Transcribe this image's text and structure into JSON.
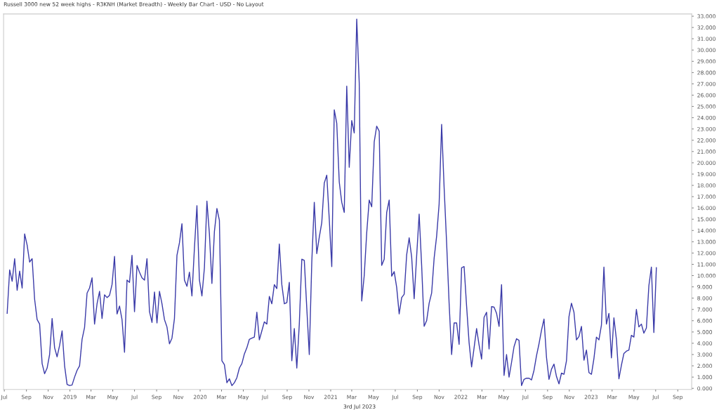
{
  "chart_data": {
    "type": "line",
    "title": "Russell 3000 new 52 week highs - R3KNH (Market Breadth) - Weekly Bar Chart - USD - No Layout",
    "annotations": [
      "3rd Jul 2023"
    ],
    "x": [
      "2018-07-09",
      "2018-07-16",
      "2018-07-23",
      "2018-07-30",
      "2018-08-06",
      "2018-08-13",
      "2018-08-20",
      "2018-08-27",
      "2018-09-03",
      "2018-09-10",
      "2018-09-17",
      "2018-09-24",
      "2018-10-01",
      "2018-10-08",
      "2018-10-15",
      "2018-10-22",
      "2018-10-29",
      "2018-11-05",
      "2018-11-12",
      "2018-11-19",
      "2018-11-26",
      "2018-12-03",
      "2018-12-10",
      "2018-12-17",
      "2018-12-24",
      "2018-12-31",
      "2019-01-07",
      "2019-01-14",
      "2019-01-21",
      "2019-01-28",
      "2019-02-04",
      "2019-02-11",
      "2019-02-18",
      "2019-02-25",
      "2019-03-04",
      "2019-03-11",
      "2019-03-18",
      "2019-03-25",
      "2019-04-01",
      "2019-04-08",
      "2019-04-15",
      "2019-04-22",
      "2019-04-29",
      "2019-05-06",
      "2019-05-13",
      "2019-05-20",
      "2019-05-27",
      "2019-06-03",
      "2019-06-10",
      "2019-06-17",
      "2019-06-24",
      "2019-07-01",
      "2019-07-08",
      "2019-07-15",
      "2019-07-22",
      "2019-07-29",
      "2019-08-05",
      "2019-08-12",
      "2019-08-19",
      "2019-08-26",
      "2019-09-02",
      "2019-09-09",
      "2019-09-16",
      "2019-09-23",
      "2019-09-30",
      "2019-10-07",
      "2019-10-14",
      "2019-10-21",
      "2019-10-28",
      "2019-11-04",
      "2019-11-11",
      "2019-11-18",
      "2019-11-25",
      "2019-12-02",
      "2019-12-09",
      "2019-12-16",
      "2019-12-23",
      "2019-12-30",
      "2020-01-06",
      "2020-01-13",
      "2020-01-20",
      "2020-01-27",
      "2020-02-03",
      "2020-02-10",
      "2020-02-17",
      "2020-02-24",
      "2020-03-02",
      "2020-03-09",
      "2020-03-16",
      "2020-03-23",
      "2020-03-30",
      "2020-04-06",
      "2020-04-13",
      "2020-04-20",
      "2020-04-27",
      "2020-05-04",
      "2020-05-11",
      "2020-05-18",
      "2020-05-25",
      "2020-06-01",
      "2020-06-08",
      "2020-06-15",
      "2020-06-22",
      "2020-06-29",
      "2020-07-06",
      "2020-07-13",
      "2020-07-20",
      "2020-07-27",
      "2020-08-03",
      "2020-08-10",
      "2020-08-17",
      "2020-08-24",
      "2020-08-31",
      "2020-09-07",
      "2020-09-14",
      "2020-09-21",
      "2020-09-28",
      "2020-10-05",
      "2020-10-12",
      "2020-10-19",
      "2020-10-26",
      "2020-11-02",
      "2020-11-09",
      "2020-11-16",
      "2020-11-23",
      "2020-11-30",
      "2020-12-07",
      "2020-12-14",
      "2020-12-21",
      "2020-12-28",
      "2021-01-04",
      "2021-01-11",
      "2021-01-18",
      "2021-01-25",
      "2021-02-01",
      "2021-02-08",
      "2021-02-15",
      "2021-02-22",
      "2021-03-01",
      "2021-03-08",
      "2021-03-15",
      "2021-03-22",
      "2021-03-29",
      "2021-04-05",
      "2021-04-12",
      "2021-04-19",
      "2021-04-26",
      "2021-05-03",
      "2021-05-10",
      "2021-05-17",
      "2021-05-24",
      "2021-05-31",
      "2021-06-07",
      "2021-06-14",
      "2021-06-21",
      "2021-06-28",
      "2021-07-05",
      "2021-07-12",
      "2021-07-19",
      "2021-07-26",
      "2021-08-02",
      "2021-08-09",
      "2021-08-16",
      "2021-08-23",
      "2021-08-30",
      "2021-09-06",
      "2021-09-13",
      "2021-09-20",
      "2021-09-27",
      "2021-10-04",
      "2021-10-11",
      "2021-10-18",
      "2021-10-25",
      "2021-11-01",
      "2021-11-08",
      "2021-11-15",
      "2021-11-22",
      "2021-11-29",
      "2021-12-06",
      "2021-12-13",
      "2021-12-20",
      "2021-12-27",
      "2022-01-03",
      "2022-01-10",
      "2022-01-17",
      "2022-01-24",
      "2022-01-31",
      "2022-02-07",
      "2022-02-14",
      "2022-02-21",
      "2022-02-28",
      "2022-03-07",
      "2022-03-14",
      "2022-03-21",
      "2022-03-28",
      "2022-04-04",
      "2022-04-11",
      "2022-04-18",
      "2022-04-25",
      "2022-05-02",
      "2022-05-09",
      "2022-05-16",
      "2022-05-23",
      "2022-05-30",
      "2022-06-06",
      "2022-06-13",
      "2022-06-20",
      "2022-06-27",
      "2022-07-04",
      "2022-07-11",
      "2022-07-18",
      "2022-07-25",
      "2022-08-01",
      "2022-08-08",
      "2022-08-15",
      "2022-08-22",
      "2022-08-29",
      "2022-09-05",
      "2022-09-12",
      "2022-09-19",
      "2022-09-26",
      "2022-10-03",
      "2022-10-10",
      "2022-10-17",
      "2022-10-24",
      "2022-10-31",
      "2022-11-07",
      "2022-11-14",
      "2022-11-21",
      "2022-11-28",
      "2022-12-05",
      "2022-12-12",
      "2022-12-19",
      "2022-12-26",
      "2023-01-02",
      "2023-01-09",
      "2023-01-16",
      "2023-01-23",
      "2023-01-30",
      "2023-02-06",
      "2023-02-13",
      "2023-02-20",
      "2023-02-27",
      "2023-03-06",
      "2023-03-13",
      "2023-03-20",
      "2023-03-27",
      "2023-04-03",
      "2023-04-10",
      "2023-04-17",
      "2023-04-24",
      "2023-05-01",
      "2023-05-08",
      "2023-05-15",
      "2023-05-22",
      "2023-05-29",
      "2023-06-05",
      "2023-06-12",
      "2023-06-19",
      "2023-06-26",
      "2023-07-03"
    ],
    "series": [
      {
        "color": "#3a3aa8",
        "values": [
          6.65,
          10.5,
          9.5,
          11.5,
          8.7,
          10.4,
          8.9,
          13.7,
          12.7,
          11.2,
          11.5,
          7.9,
          6.1,
          5.7,
          2.2,
          1.3,
          1.8,
          3.0,
          6.2,
          3.6,
          2.8,
          3.8,
          5.1,
          2.0,
          0.35,
          0.25,
          0.3,
          1.0,
          1.6,
          2.0,
          4.35,
          5.4,
          8.45,
          8.9,
          9.8,
          5.7,
          7.5,
          8.6,
          6.2,
          8.3,
          8.05,
          8.25,
          9.2,
          11.7,
          6.6,
          7.3,
          6.1,
          3.2,
          9.6,
          9.4,
          11.8,
          6.8,
          10.9,
          10.3,
          9.8,
          9.6,
          11.5,
          6.8,
          5.85,
          8.55,
          5.8,
          8.6,
          7.5,
          6.1,
          5.45,
          3.95,
          4.45,
          6.2,
          11.8,
          12.9,
          14.6,
          9.6,
          9.05,
          10.3,
          8.2,
          12.45,
          16.2,
          9.6,
          8.2,
          10.7,
          16.6,
          13.7,
          9.3,
          13.9,
          15.95,
          14.9,
          2.45,
          2.1,
          0.5,
          0.85,
          0.25,
          0.5,
          0.95,
          1.8,
          2.2,
          3.05,
          3.6,
          4.35,
          4.45,
          4.55,
          6.75,
          4.3,
          5.1,
          5.9,
          5.7,
          8.15,
          7.5,
          9.2,
          8.85,
          12.8,
          9.2,
          7.5,
          7.6,
          9.4,
          2.45,
          5.3,
          1.8,
          5.7,
          11.45,
          11.35,
          7.1,
          3.0,
          11.2,
          16.5,
          11.95,
          13.4,
          14.7,
          18.2,
          18.9,
          15.0,
          10.8,
          24.7,
          23.5,
          18.3,
          16.5,
          15.6,
          26.8,
          19.6,
          23.75,
          22.65,
          32.75,
          27.1,
          7.75,
          10.0,
          13.8,
          16.7,
          16.1,
          21.85,
          23.25,
          22.8,
          10.9,
          11.45,
          15.6,
          16.7,
          9.95,
          10.35,
          8.95,
          6.6,
          8.05,
          8.35,
          11.85,
          13.35,
          11.65,
          7.95,
          11.75,
          15.45,
          10.9,
          5.5,
          6.0,
          7.55,
          8.45,
          11.55,
          13.5,
          16.35,
          23.4,
          17.8,
          12.9,
          7.55,
          3.0,
          5.8,
          5.8,
          3.9,
          10.7,
          10.8,
          7.3,
          4.05,
          1.9,
          3.6,
          5.3,
          3.85,
          2.6,
          6.3,
          6.75,
          3.5,
          7.25,
          7.2,
          6.65,
          5.5,
          9.2,
          1.15,
          3.0,
          1.0,
          2.3,
          3.7,
          4.4,
          4.25,
          0.25,
          0.8,
          0.9,
          0.9,
          0.75,
          1.6,
          2.9,
          3.95,
          5.15,
          6.15,
          2.75,
          0.8,
          1.7,
          2.15,
          1.05,
          0.4,
          1.35,
          1.25,
          2.45,
          6.35,
          7.55,
          6.75,
          4.3,
          4.6,
          5.5,
          2.5,
          3.4,
          1.4,
          1.25,
          2.65,
          4.55,
          4.3,
          5.6,
          10.75,
          5.7,
          6.65,
          2.7,
          6.25,
          4.35,
          0.85,
          2.05,
          3.1,
          3.3,
          3.4,
          4.7,
          4.55,
          7.0,
          5.45,
          5.7,
          4.9,
          5.35,
          9.1,
          10.75,
          4.95,
          10.7
        ]
      }
    ],
    "xlim": [
      "2018-06-29",
      "2023-10-10"
    ],
    "xticks": [
      {
        "value": "2018-07-01",
        "label": "Jul"
      },
      {
        "value": "2018-09-01",
        "label": "Sep"
      },
      {
        "value": "2018-11-01",
        "label": "Nov"
      },
      {
        "value": "2019-01-01",
        "label": "2019"
      },
      {
        "value": "2019-03-01",
        "label": "Mar"
      },
      {
        "value": "2019-05-01",
        "label": "May"
      },
      {
        "value": "2019-07-01",
        "label": "Jul"
      },
      {
        "value": "2019-09-01",
        "label": "Sep"
      },
      {
        "value": "2019-11-01",
        "label": "Nov"
      },
      {
        "value": "2020-01-01",
        "label": "2020"
      },
      {
        "value": "2020-03-01",
        "label": "Mar"
      },
      {
        "value": "2020-05-01",
        "label": "May"
      },
      {
        "value": "2020-07-01",
        "label": "Jul"
      },
      {
        "value": "2020-09-01",
        "label": "Sep"
      },
      {
        "value": "2020-11-01",
        "label": "Nov"
      },
      {
        "value": "2021-01-01",
        "label": "2021"
      },
      {
        "value": "2021-03-01",
        "label": "Mar"
      },
      {
        "value": "2021-05-01",
        "label": "May"
      },
      {
        "value": "2021-07-01",
        "label": "Jul"
      },
      {
        "value": "2021-09-01",
        "label": "Sep"
      },
      {
        "value": "2021-11-01",
        "label": "Nov"
      },
      {
        "value": "2022-01-01",
        "label": "2022"
      },
      {
        "value": "2022-03-01",
        "label": "Mar"
      },
      {
        "value": "2022-05-01",
        "label": "May"
      },
      {
        "value": "2022-07-01",
        "label": "Jul"
      },
      {
        "value": "2022-09-01",
        "label": "Sep"
      },
      {
        "value": "2022-11-01",
        "label": "Nov"
      },
      {
        "value": "2023-01-01",
        "label": "2023"
      },
      {
        "value": "2023-03-01",
        "label": "Mar"
      },
      {
        "value": "2023-05-01",
        "label": "May"
      },
      {
        "value": "2023-07-01",
        "label": "Jul"
      },
      {
        "value": "2023-09-01",
        "label": "Sep"
      }
    ],
    "ylim": [
      -0.1,
      33.2
    ],
    "yticks": [
      {
        "value": 0,
        "label": "0.000"
      },
      {
        "value": 1,
        "label": "1.000"
      },
      {
        "value": 2,
        "label": "2.000"
      },
      {
        "value": 3,
        "label": "3.000"
      },
      {
        "value": 4,
        "label": "4.000"
      },
      {
        "value": 5,
        "label": "5.000"
      },
      {
        "value": 6,
        "label": "6.000"
      },
      {
        "value": 7,
        "label": "7.000"
      },
      {
        "value": 8,
        "label": "8.000"
      },
      {
        "value": 9,
        "label": "9.000"
      },
      {
        "value": 10,
        "label": "10.000"
      },
      {
        "value": 11,
        "label": "11.000"
      },
      {
        "value": 12,
        "label": "12.000"
      },
      {
        "value": 13,
        "label": "13.000"
      },
      {
        "value": 14,
        "label": "14.000"
      },
      {
        "value": 15,
        "label": "15.000"
      },
      {
        "value": 16,
        "label": "16.000"
      },
      {
        "value": 17,
        "label": "17.000"
      },
      {
        "value": 18,
        "label": "18.000"
      },
      {
        "value": 19,
        "label": "19.000"
      },
      {
        "value": 20,
        "label": "20.000"
      },
      {
        "value": 21,
        "label": "21.000"
      },
      {
        "value": 22,
        "label": "22.000"
      },
      {
        "value": 23,
        "label": "23.000"
      },
      {
        "value": 24,
        "label": "24.000"
      },
      {
        "value": 25,
        "label": "25.000"
      },
      {
        "value": 26,
        "label": "26.000"
      },
      {
        "value": 27,
        "label": "27.000"
      },
      {
        "value": 28,
        "label": "28.000"
      },
      {
        "value": 29,
        "label": "29.000"
      },
      {
        "value": 30,
        "label": "30.000"
      },
      {
        "value": 31,
        "label": "31.000"
      },
      {
        "value": 32,
        "label": "32.000"
      },
      {
        "value": 33,
        "label": "33.000"
      }
    ],
    "grid": false
  }
}
